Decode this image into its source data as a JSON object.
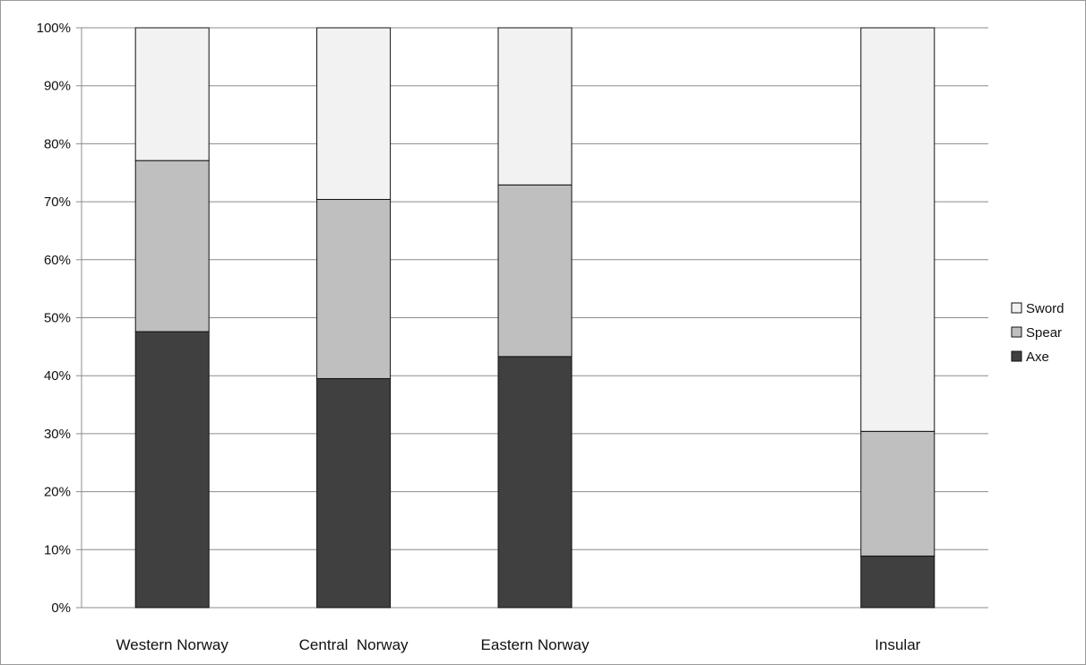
{
  "chart_data": {
    "type": "bar",
    "stacked": true,
    "percent": true,
    "categories": [
      "Western Norway",
      "Central  Norway",
      "Eastern Norway",
      "",
      "Insular"
    ],
    "series": [
      {
        "name": "Axe",
        "color": "#404040",
        "values": [
          47.6,
          39.5,
          43.3,
          null,
          8.9
        ]
      },
      {
        "name": "Spear",
        "color": "#bfbfbf",
        "values": [
          29.5,
          30.9,
          29.6,
          null,
          21.5
        ]
      },
      {
        "name": "Sword",
        "color": "#f2f2f2",
        "values": [
          22.9,
          29.6,
          27.1,
          null,
          69.6
        ]
      }
    ],
    "y_ticks": [
      "0%",
      "10%",
      "20%",
      "30%",
      "40%",
      "50%",
      "60%",
      "70%",
      "80%",
      "90%",
      "100%"
    ],
    "ylim": [
      0,
      100
    ],
    "grid": true,
    "legend": {
      "position": "right",
      "order": [
        "Sword",
        "Spear",
        "Axe"
      ]
    },
    "title": "",
    "xlabel": "",
    "ylabel": ""
  }
}
